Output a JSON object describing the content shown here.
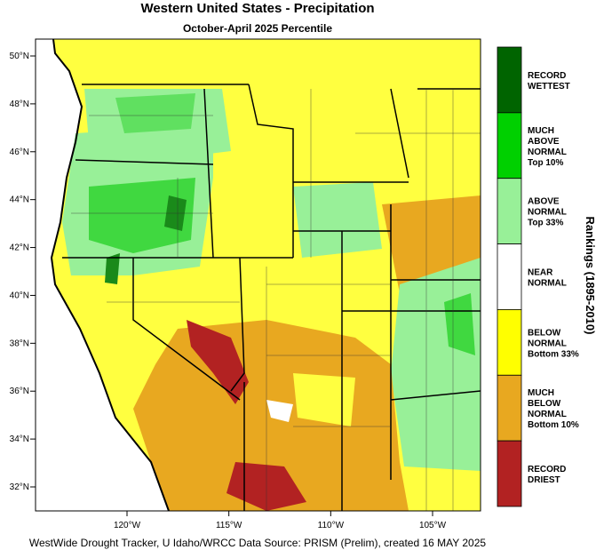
{
  "header": {
    "title": "Western United States - Precipitation",
    "subtitle": "October-April 2025 Percentile"
  },
  "map": {
    "lat_ticks": [
      {
        "value": 50,
        "label": "50°N"
      },
      {
        "value": 48,
        "label": "48°N"
      },
      {
        "value": 46,
        "label": "46°N"
      },
      {
        "value": 44,
        "label": "44°N"
      },
      {
        "value": 42,
        "label": "42°N"
      },
      {
        "value": 40,
        "label": "40°N"
      },
      {
        "value": 38,
        "label": "38°N"
      },
      {
        "value": 36,
        "label": "36°N"
      },
      {
        "value": 34,
        "label": "34°N"
      },
      {
        "value": 32,
        "label": "32°N"
      }
    ],
    "lon_ticks": [
      {
        "value": -120,
        "label": "120°W"
      },
      {
        "value": -115,
        "label": "115°W"
      },
      {
        "value": -110,
        "label": "110°W"
      },
      {
        "value": -105,
        "label": "105°W"
      }
    ]
  },
  "legend": {
    "title": "Rankings (1895-2010)",
    "items": [
      {
        "color": "#006400",
        "lines": [
          "RECORD",
          "WETTEST"
        ]
      },
      {
        "color": "#00d000",
        "lines": [
          "MUCH",
          "ABOVE",
          "NORMAL",
          "Top 10%"
        ]
      },
      {
        "color": "#98f098",
        "lines": [
          "ABOVE",
          "NORMAL",
          "Top 33%"
        ]
      },
      {
        "color": "#ffffff",
        "lines": [
          "NEAR",
          "NORMAL"
        ]
      },
      {
        "color": "#ffff00",
        "lines": [
          "BELOW",
          "NORMAL",
          "Bottom 33%"
        ]
      },
      {
        "color": "#e8a820",
        "lines": [
          "MUCH",
          "BELOW",
          "NORMAL",
          "Bottom 10%"
        ]
      },
      {
        "color": "#b22222",
        "lines": [
          "RECORD",
          "DRIEST"
        ]
      }
    ]
  },
  "footer": "WestWide Drought Tracker, U Idaho/WRCC Data Source: PRISM (Prelim), created 16 MAY 2025"
}
